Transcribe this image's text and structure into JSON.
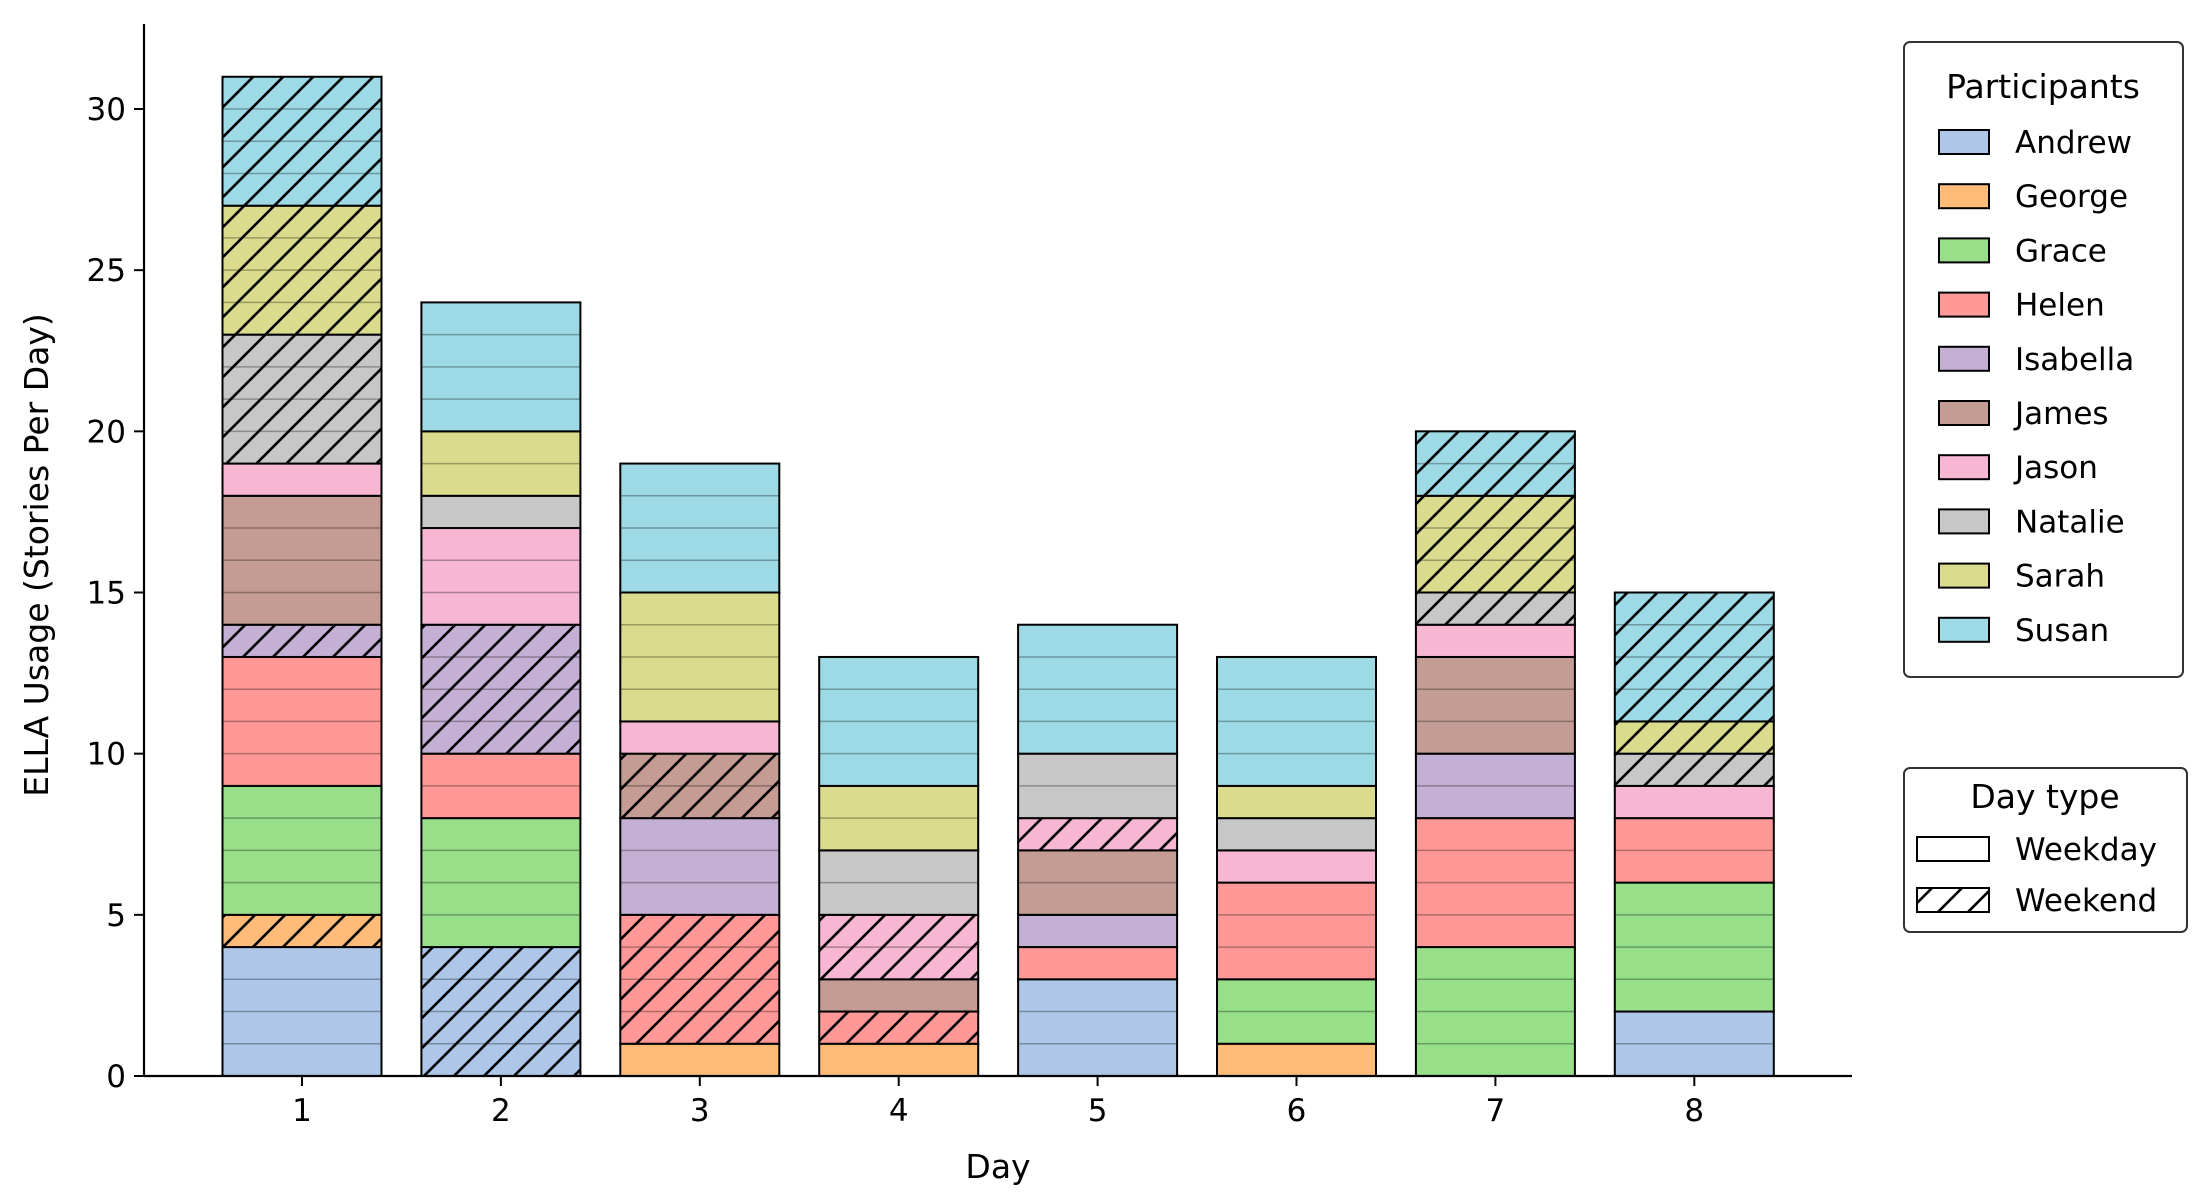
{
  "chart_data": {
    "type": "bar",
    "stacked": true,
    "title": "",
    "xlabel": "Day",
    "ylabel": "ELLA Usage (Stories Per Day)",
    "ylim": [
      0,
      32.5
    ],
    "yticks": [
      0,
      5,
      10,
      15,
      20,
      25,
      30
    ],
    "categories": [
      "1",
      "2",
      "3",
      "4",
      "5",
      "6",
      "7",
      "8"
    ],
    "grid": false,
    "legend_placement": "right",
    "legend_title": "Participants",
    "daytype_legend": {
      "title": "Day type",
      "entries": [
        {
          "label": "Weekday",
          "hatch": false
        },
        {
          "label": "Weekend",
          "hatch": true
        }
      ]
    },
    "series": [
      {
        "name": "Andrew",
        "color": "#aec7e8",
        "values": [
          4,
          4,
          0,
          0,
          3,
          0,
          0,
          2
        ],
        "weekend": [
          false,
          true,
          false,
          false,
          false,
          false,
          false,
          false
        ]
      },
      {
        "name": "George",
        "color": "#ffbb78",
        "values": [
          1,
          0,
          1,
          1,
          0,
          1,
          0,
          0
        ],
        "weekend": [
          true,
          false,
          false,
          false,
          false,
          false,
          false,
          false
        ]
      },
      {
        "name": "Grace",
        "color": "#98df8a",
        "values": [
          4,
          4,
          0,
          0,
          0,
          2,
          4,
          4
        ],
        "weekend": [
          false,
          false,
          false,
          false,
          false,
          false,
          false,
          false
        ]
      },
      {
        "name": "Helen",
        "color": "#ff9896",
        "values": [
          4,
          2,
          4,
          1,
          1,
          3,
          4,
          2
        ],
        "weekend": [
          false,
          false,
          true,
          true,
          false,
          false,
          false,
          false
        ]
      },
      {
        "name": "Isabella",
        "color": "#c5b0d5",
        "values": [
          1,
          4,
          3,
          0,
          1,
          0,
          2,
          0
        ],
        "weekend": [
          true,
          true,
          false,
          false,
          false,
          false,
          false,
          false
        ]
      },
      {
        "name": "James",
        "color": "#c49c94",
        "values": [
          4,
          0,
          2,
          1,
          2,
          0,
          3,
          0
        ],
        "weekend": [
          false,
          false,
          true,
          false,
          false,
          false,
          false,
          false
        ]
      },
      {
        "name": "Jason",
        "color": "#f7b6d2",
        "values": [
          1,
          3,
          1,
          2,
          1,
          1,
          1,
          1
        ],
        "weekend": [
          false,
          false,
          false,
          true,
          true,
          false,
          false,
          false
        ]
      },
      {
        "name": "Natalie",
        "color": "#c7c7c7",
        "values": [
          4,
          1,
          0,
          2,
          2,
          1,
          1,
          1
        ],
        "weekend": [
          true,
          false,
          false,
          false,
          false,
          false,
          true,
          true
        ]
      },
      {
        "name": "Sarah",
        "color": "#dbdb8d",
        "values": [
          4,
          2,
          4,
          2,
          0,
          1,
          3,
          1
        ],
        "weekend": [
          true,
          false,
          false,
          false,
          false,
          false,
          true,
          true
        ]
      },
      {
        "name": "Susan",
        "color": "#9edae5",
        "values": [
          4,
          4,
          4,
          4,
          4,
          4,
          2,
          4
        ],
        "weekend": [
          true,
          false,
          false,
          false,
          false,
          false,
          true,
          true
        ]
      }
    ]
  }
}
